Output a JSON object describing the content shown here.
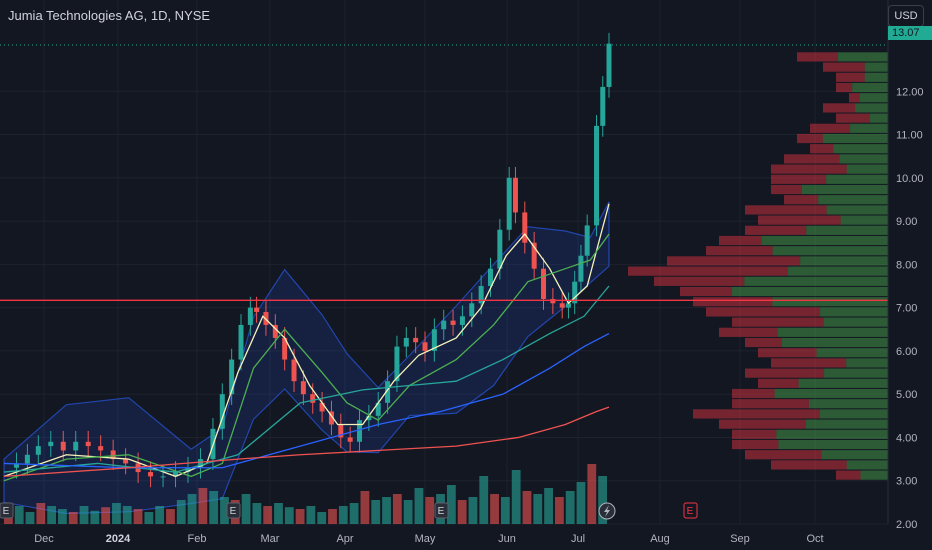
{
  "header": {
    "title": "Jumia Technologies AG, 1D, NYSE",
    "currency": "USD",
    "last_price": "13.07"
  },
  "colors": {
    "bg": "#131722",
    "up": "#26a69a",
    "down": "#ef5350",
    "hline": "#f23645",
    "ma_fast": "#f5f3b8",
    "ma_green": "#4caf50",
    "ma_teal": "#26a69a",
    "ma_blue": "#2962ff",
    "ma_red": "#ef5350",
    "band": "#2962ff"
  },
  "chart_data": {
    "type": "candlestick",
    "title": "Jumia Technologies AG, 1D, NYSE",
    "x_ticks": [
      "Dec",
      "2024",
      "Feb",
      "Mar",
      "Apr",
      "May",
      "Jun",
      "Jul",
      "Aug",
      "Sep",
      "Oct"
    ],
    "y_ticks": [
      "12.00",
      "11.00",
      "10.00",
      "9.00",
      "8.00",
      "7.00",
      "6.00",
      "5.00",
      "4.00",
      "3.00",
      "2.00"
    ],
    "ylim": [
      2.0,
      13.3
    ],
    "scale": "linear",
    "horizontal_line": 7.17,
    "series": [
      {
        "label": "Close",
        "points": [
          [
            0,
            3.3
          ],
          [
            8,
            3.4
          ],
          [
            15,
            3.6
          ],
          [
            22,
            3.8
          ],
          [
            30,
            3.9
          ],
          [
            38,
            3.7
          ],
          [
            46,
            3.9
          ],
          [
            54,
            3.8
          ],
          [
            62,
            3.7
          ],
          [
            70,
            3.5
          ],
          [
            78,
            3.4
          ],
          [
            86,
            3.2
          ],
          [
            94,
            3.1
          ],
          [
            102,
            3.1
          ],
          [
            110,
            3.2
          ],
          [
            118,
            3.3
          ],
          [
            126,
            3.5
          ],
          [
            134,
            4.2
          ],
          [
            140,
            5.0
          ],
          [
            146,
            5.8
          ],
          [
            152,
            6.6
          ],
          [
            158,
            7.0
          ],
          [
            162,
            6.9
          ],
          [
            168,
            6.6
          ],
          [
            174,
            6.3
          ],
          [
            180,
            5.8
          ],
          [
            186,
            5.3
          ],
          [
            192,
            5.0
          ],
          [
            198,
            4.8
          ],
          [
            204,
            4.6
          ],
          [
            210,
            4.3
          ],
          [
            216,
            4.0
          ],
          [
            222,
            3.9
          ],
          [
            228,
            4.4
          ],
          [
            234,
            4.5
          ],
          [
            240,
            4.8
          ],
          [
            246,
            5.3
          ],
          [
            252,
            6.1
          ],
          [
            258,
            6.3
          ],
          [
            264,
            6.2
          ],
          [
            270,
            6.0
          ],
          [
            276,
            6.5
          ],
          [
            282,
            6.7
          ],
          [
            288,
            6.6
          ],
          [
            294,
            6.8
          ],
          [
            300,
            7.1
          ],
          [
            306,
            7.5
          ],
          [
            312,
            7.9
          ],
          [
            318,
            8.8
          ],
          [
            324,
            10.0
          ],
          [
            328,
            9.2
          ],
          [
            334,
            8.5
          ],
          [
            340,
            7.9
          ],
          [
            346,
            7.2
          ],
          [
            352,
            7.1
          ],
          [
            358,
            7.0
          ],
          [
            362,
            7.1
          ],
          [
            366,
            7.6
          ],
          [
            370,
            8.2
          ],
          [
            374,
            8.9
          ],
          [
            380,
            11.2
          ],
          [
            384,
            12.1
          ],
          [
            388,
            13.1
          ]
        ]
      },
      {
        "label": "Moving average, fast",
        "points": [
          [
            0,
            3.1
          ],
          [
            40,
            3.6
          ],
          [
            80,
            3.5
          ],
          [
            110,
            3.1
          ],
          [
            130,
            3.4
          ],
          [
            150,
            5.5
          ],
          [
            166,
            6.8
          ],
          [
            180,
            6.3
          ],
          [
            196,
            5.2
          ],
          [
            214,
            4.3
          ],
          [
            230,
            4.3
          ],
          [
            250,
            5.3
          ],
          [
            266,
            5.9
          ],
          [
            290,
            6.3
          ],
          [
            306,
            7.0
          ],
          [
            322,
            8.2
          ],
          [
            334,
            8.7
          ],
          [
            350,
            7.9
          ],
          [
            362,
            7.1
          ],
          [
            374,
            7.5
          ],
          [
            388,
            9.4
          ]
        ]
      },
      {
        "label": "Moving average, green",
        "points": [
          [
            0,
            3.0
          ],
          [
            40,
            3.5
          ],
          [
            80,
            3.6
          ],
          [
            120,
            3.1
          ],
          [
            140,
            3.4
          ],
          [
            160,
            5.6
          ],
          [
            180,
            6.5
          ],
          [
            204,
            5.5
          ],
          [
            220,
            4.8
          ],
          [
            240,
            4.4
          ],
          [
            260,
            5.2
          ],
          [
            290,
            5.8
          ],
          [
            314,
            6.6
          ],
          [
            336,
            7.6
          ],
          [
            360,
            7.9
          ],
          [
            376,
            8.1
          ],
          [
            388,
            8.7
          ]
        ]
      },
      {
        "label": "Moving average, teal",
        "points": [
          [
            0,
            3.2
          ],
          [
            60,
            3.4
          ],
          [
            110,
            3.2
          ],
          [
            150,
            3.6
          ],
          [
            190,
            4.8
          ],
          [
            230,
            5.1
          ],
          [
            260,
            5.2
          ],
          [
            290,
            5.3
          ],
          [
            320,
            5.8
          ],
          [
            350,
            6.4
          ],
          [
            372,
            6.8
          ],
          [
            388,
            7.5
          ]
        ]
      },
      {
        "label": "Moving average, blue",
        "points": [
          [
            0,
            3.4
          ],
          [
            80,
            3.3
          ],
          [
            140,
            3.3
          ],
          [
            190,
            3.8
          ],
          [
            240,
            4.3
          ],
          [
            280,
            4.6
          ],
          [
            320,
            5.0
          ],
          [
            350,
            5.6
          ],
          [
            372,
            6.1
          ],
          [
            388,
            6.4
          ]
        ]
      },
      {
        "label": "Moving average, red",
        "points": [
          [
            0,
            3.1
          ],
          [
            80,
            3.3
          ],
          [
            150,
            3.5
          ],
          [
            190,
            3.6
          ],
          [
            240,
            3.7
          ],
          [
            290,
            3.8
          ],
          [
            330,
            4.0
          ],
          [
            360,
            4.3
          ],
          [
            380,
            4.6
          ],
          [
            388,
            4.7
          ]
        ]
      }
    ],
    "volume_relative": [
      0.25,
      0.3,
      0.2,
      0.35,
      0.3,
      0.25,
      0.2,
      0.3,
      0.22,
      0.28,
      0.35,
      0.3,
      0.25,
      0.2,
      0.3,
      0.25,
      0.4,
      0.5,
      0.6,
      0.55,
      0.45,
      0.4,
      0.5,
      0.35,
      0.3,
      0.35,
      0.28,
      0.25,
      0.3,
      0.2,
      0.25,
      0.3,
      0.35,
      0.55,
      0.4,
      0.45,
      0.5,
      0.4,
      0.6,
      0.45,
      0.5,
      0.65,
      0.4,
      0.45,
      0.8,
      0.5,
      0.45,
      0.9,
      0.55,
      0.5,
      0.6,
      0.45,
      0.55,
      0.7,
      1.0,
      0.8
    ],
    "volume_profile_relative": [
      0.35,
      0.25,
      0.2,
      0.2,
      0.15,
      0.25,
      0.2,
      0.3,
      0.35,
      0.3,
      0.4,
      0.45,
      0.45,
      0.45,
      0.4,
      0.55,
      0.5,
      0.55,
      0.65,
      0.7,
      0.85,
      1.0,
      0.9,
      0.8,
      0.75,
      0.7,
      0.6,
      0.65,
      0.55,
      0.5,
      0.45,
      0.55,
      0.5,
      0.6,
      0.6,
      0.75,
      0.65,
      0.6,
      0.6,
      0.55,
      0.45,
      0.2
    ],
    "event_markers": [
      "E",
      "E",
      "E",
      "E"
    ]
  }
}
